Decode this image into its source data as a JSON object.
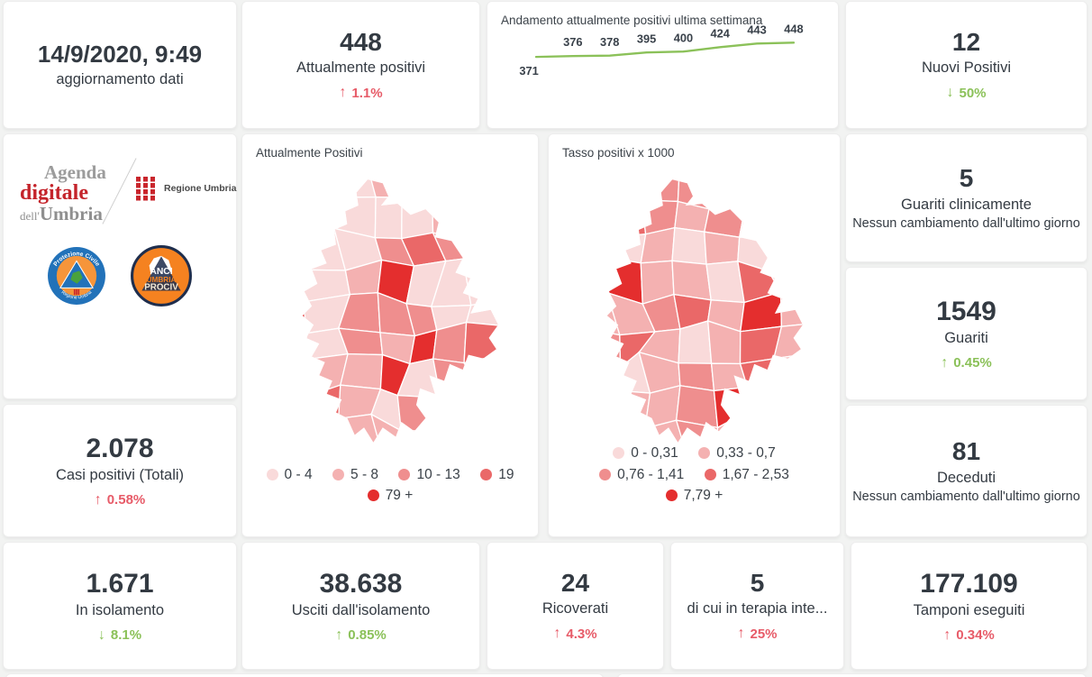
{
  "palette": {
    "text_dark": "#333a42",
    "negative_red": "#e75b68",
    "positive_green": "#8bc159",
    "map_scale": [
      "#f9dada",
      "#f4b1b1",
      "#ef8e8e",
      "#ea6868",
      "#e42e2e"
    ]
  },
  "icons": {
    "up_arrow": "↑",
    "down_arrow": "↓"
  },
  "header": {
    "date_value": "14/9/2020, 9:49",
    "date_label": "aggiornamento dati"
  },
  "kpis": {
    "attualmente_positivi": {
      "value": "448",
      "label": "Attualmente positivi",
      "delta": "1.1%",
      "direction": "up",
      "tone": "negative"
    },
    "nuovi_positivi": {
      "value": "12",
      "label": "Nuovi Positivi",
      "delta": "50%",
      "direction": "down",
      "tone": "positive"
    },
    "casi_positivi_totali": {
      "value": "2.078",
      "label": "Casi positivi (Totali)",
      "delta": "0.58%",
      "direction": "up",
      "tone": "negative"
    },
    "guariti_clinicamente": {
      "value": "5",
      "label": "Guariti clinicamente",
      "note": "Nessun cambiamento dall'ultimo giorno"
    },
    "guariti": {
      "value": "1549",
      "label": "Guariti",
      "delta": "0.45%",
      "direction": "up",
      "tone": "positive"
    },
    "deceduti": {
      "value": "81",
      "label": "Deceduti",
      "note": "Nessun cambiamento dall'ultimo giorno"
    },
    "in_isolamento": {
      "value": "1.671",
      "label": "In isolamento",
      "delta": "8.1%",
      "direction": "down",
      "tone": "positive"
    },
    "usciti_isolamento": {
      "value": "38.638",
      "label": "Usciti dall'isolamento",
      "delta": "0.85%",
      "direction": "up",
      "tone": "positive"
    },
    "ricoverati": {
      "value": "24",
      "label": "Ricoverati",
      "delta": "4.3%",
      "direction": "up",
      "tone": "negative"
    },
    "terapia_intensiva": {
      "value": "5",
      "label": "di cui in terapia inte...",
      "delta": "25%",
      "direction": "up",
      "tone": "negative"
    },
    "tamponi": {
      "value": "177.109",
      "label": "Tamponi eseguiti",
      "delta": "0.34%",
      "direction": "up",
      "tone": "negative"
    }
  },
  "maps": {
    "map1": {
      "title": "Attualmente Positivi",
      "legend": [
        "0 - 4",
        "5 - 8",
        "10 - 13",
        "19",
        "79 +"
      ]
    },
    "map2": {
      "title": "Tasso positivi x 1000",
      "legend": [
        "0 - 0,31",
        "0,33 - 0,7",
        "0,76 - 1,41",
        "1,67 - 2,53",
        "7,79 +"
      ]
    }
  },
  "logos": {
    "agenda_line1": "Agenda",
    "agenda_line2": "digitale",
    "agenda_line3_prefix": "dell'",
    "agenda_line3": "Umbria",
    "regione_umbria": "Regione Umbria",
    "protezione_civile_top": "Protezione Civile",
    "protezione_civile_bottom": "Regione Umbria",
    "anci_line1": "ANCI",
    "anci_line2": "UMBRIA",
    "anci_line3": "PROCIV"
  },
  "chart_data": [
    {
      "type": "line",
      "title": "Andamento attualmente positivi ultima settimana",
      "values": [
        371,
        376,
        378,
        395,
        400,
        424,
        443,
        448
      ],
      "labels_shown": true,
      "line_color": "#8bc159",
      "x_axis": "hidden",
      "y_axis": "hidden"
    },
    {
      "type": "choropleth",
      "title": "Attualmente Positivi",
      "region": "Umbria municipalities",
      "legend_bins": [
        "0 - 4",
        "5 - 8",
        "10 - 13",
        "19",
        "79 +"
      ],
      "colors": [
        "#f9dada",
        "#f4b1b1",
        "#ef8e8e",
        "#ea6868",
        "#e42e2e"
      ]
    },
    {
      "type": "choropleth",
      "title": "Tasso positivi x 1000",
      "region": "Umbria municipalities",
      "legend_bins": [
        "0 - 0,31",
        "0,33 - 0,7",
        "0,76 - 1,41",
        "1,67 - 2,53",
        "7,79 +"
      ],
      "colors": [
        "#f9dada",
        "#f4b1b1",
        "#ef8e8e",
        "#ea6868",
        "#e42e2e"
      ]
    }
  ]
}
